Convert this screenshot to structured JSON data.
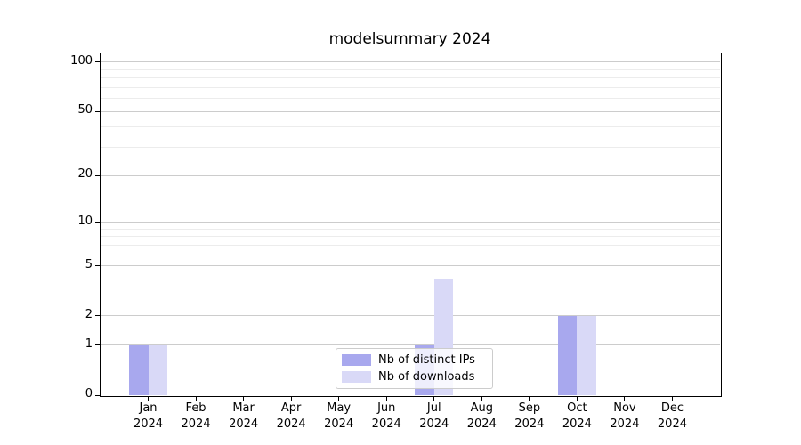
{
  "page": {
    "background": "#ffffff"
  },
  "chart_data": {
    "type": "bar",
    "title": "modelsummary 2024",
    "categories": [
      [
        "Jan",
        "2024"
      ],
      [
        "Feb",
        "2024"
      ],
      [
        "Mar",
        "2024"
      ],
      [
        "Apr",
        "2024"
      ],
      [
        "May",
        "2024"
      ],
      [
        "Jun",
        "2024"
      ],
      [
        "Jul",
        "2024"
      ],
      [
        "Aug",
        "2024"
      ],
      [
        "Sep",
        "2024"
      ],
      [
        "Oct",
        "2024"
      ],
      [
        "Nov",
        "2024"
      ],
      [
        "Dec",
        "2024"
      ]
    ],
    "series": [
      {
        "name": "Nb of distinct IPs",
        "color": "#a8a8ee",
        "values": [
          1,
          0,
          0,
          0,
          0,
          0,
          1,
          0,
          0,
          2,
          0,
          0
        ]
      },
      {
        "name": "Nb of downloads",
        "color": "#d9d9f7",
        "values": [
          1,
          0,
          0,
          0,
          0,
          0,
          4,
          0,
          0,
          2,
          0,
          0
        ]
      }
    ],
    "xlabel": "",
    "ylabel": "",
    "yscale": "log1p",
    "ylim": [
      0,
      113
    ],
    "yticks": [
      0,
      1,
      2,
      5,
      10,
      20,
      50,
      100
    ],
    "yticks_minor": [
      3,
      4,
      6,
      7,
      8,
      9,
      30,
      40,
      60,
      70,
      80,
      90
    ],
    "grid": "on",
    "legend_position": "lower center"
  },
  "colors": {
    "grid_major": "#cccccc",
    "grid_minor": "#ececec",
    "axis_frame": "#000000",
    "tick": "#000000",
    "text": "#000000"
  }
}
